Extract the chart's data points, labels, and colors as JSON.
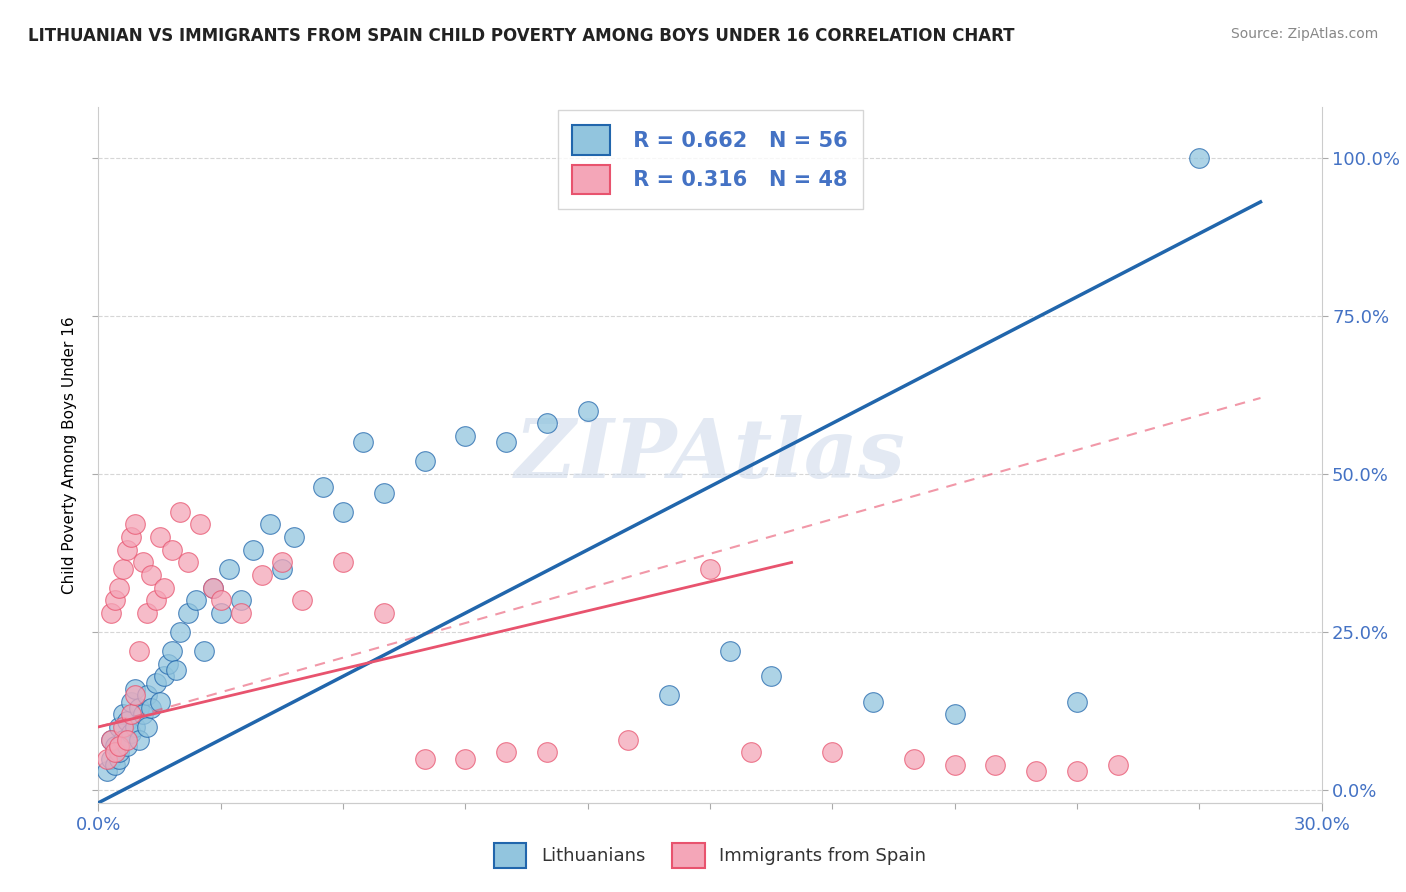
{
  "title": "LITHUANIAN VS IMMIGRANTS FROM SPAIN CHILD POVERTY AMONG BOYS UNDER 16 CORRELATION CHART",
  "source": "Source: ZipAtlas.com",
  "ylabel": "Child Poverty Among Boys Under 16",
  "xlim": [
    0.0,
    0.3
  ],
  "ylim": [
    -0.02,
    1.08
  ],
  "watermark": "ZIPAtlas",
  "legend_blue_r": "R = 0.662",
  "legend_blue_n": "N = 56",
  "legend_pink_r": "R = 0.316",
  "legend_pink_n": "N = 48",
  "legend_label_blue": "Lithuanians",
  "legend_label_pink": "Immigrants from Spain",
  "blue_color": "#92c5de",
  "pink_color": "#f4a6b8",
  "trend_blue_color": "#2166ac",
  "trend_pink_color": "#e8536e",
  "axis_label_color": "#4472c4",
  "ytick_vals": [
    0.0,
    0.25,
    0.5,
    0.75,
    1.0
  ],
  "ytick_labels": [
    "0.0%",
    "25.0%",
    "50.0%",
    "75.0%",
    "100.0%"
  ],
  "blue_x": [
    0.002,
    0.003,
    0.003,
    0.004,
    0.004,
    0.005,
    0.005,
    0.005,
    0.006,
    0.006,
    0.007,
    0.007,
    0.008,
    0.008,
    0.009,
    0.009,
    0.01,
    0.01,
    0.011,
    0.012,
    0.012,
    0.013,
    0.014,
    0.015,
    0.016,
    0.017,
    0.018,
    0.019,
    0.02,
    0.022,
    0.024,
    0.026,
    0.028,
    0.03,
    0.032,
    0.035,
    0.038,
    0.042,
    0.045,
    0.048,
    0.055,
    0.06,
    0.065,
    0.07,
    0.08,
    0.09,
    0.1,
    0.11,
    0.12,
    0.14,
    0.155,
    0.165,
    0.19,
    0.21,
    0.24,
    0.27
  ],
  "blue_y": [
    0.03,
    0.05,
    0.08,
    0.04,
    0.07,
    0.05,
    0.06,
    0.1,
    0.08,
    0.12,
    0.07,
    0.11,
    0.09,
    0.14,
    0.1,
    0.16,
    0.08,
    0.13,
    0.12,
    0.1,
    0.15,
    0.13,
    0.17,
    0.14,
    0.18,
    0.2,
    0.22,
    0.19,
    0.25,
    0.28,
    0.3,
    0.22,
    0.32,
    0.28,
    0.35,
    0.3,
    0.38,
    0.42,
    0.35,
    0.4,
    0.48,
    0.44,
    0.55,
    0.47,
    0.52,
    0.56,
    0.55,
    0.58,
    0.6,
    0.15,
    0.22,
    0.18,
    0.14,
    0.12,
    0.14,
    1.0
  ],
  "pink_x": [
    0.002,
    0.003,
    0.003,
    0.004,
    0.004,
    0.005,
    0.005,
    0.006,
    0.006,
    0.007,
    0.007,
    0.008,
    0.008,
    0.009,
    0.009,
    0.01,
    0.011,
    0.012,
    0.013,
    0.014,
    0.015,
    0.016,
    0.018,
    0.02,
    0.022,
    0.025,
    0.028,
    0.03,
    0.035,
    0.04,
    0.045,
    0.05,
    0.06,
    0.07,
    0.08,
    0.09,
    0.1,
    0.11,
    0.13,
    0.15,
    0.16,
    0.18,
    0.2,
    0.21,
    0.22,
    0.23,
    0.24,
    0.25
  ],
  "pink_y": [
    0.05,
    0.08,
    0.28,
    0.06,
    0.3,
    0.07,
    0.32,
    0.1,
    0.35,
    0.08,
    0.38,
    0.12,
    0.4,
    0.15,
    0.42,
    0.22,
    0.36,
    0.28,
    0.34,
    0.3,
    0.4,
    0.32,
    0.38,
    0.44,
    0.36,
    0.42,
    0.32,
    0.3,
    0.28,
    0.34,
    0.36,
    0.3,
    0.36,
    0.28,
    0.05,
    0.05,
    0.06,
    0.06,
    0.08,
    0.35,
    0.06,
    0.06,
    0.05,
    0.04,
    0.04,
    0.03,
    0.03,
    0.04
  ],
  "blue_trend_x": [
    0.0,
    0.285
  ],
  "blue_trend_y": [
    -0.02,
    0.93
  ],
  "pink_trend_x": [
    0.0,
    0.17
  ],
  "pink_trend_y": [
    0.1,
    0.36
  ]
}
